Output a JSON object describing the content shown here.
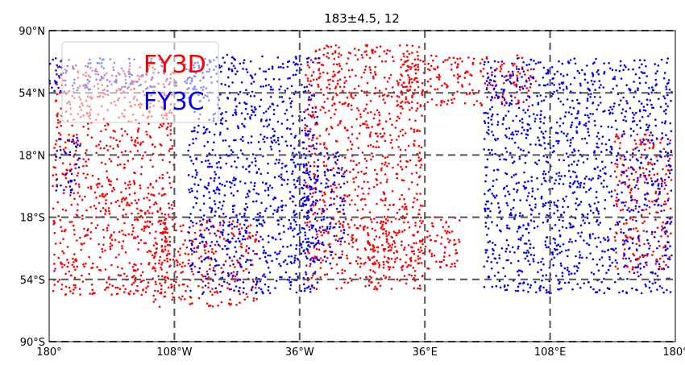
{
  "chart_data": {
    "type": "scatter",
    "title": "183±4.5, 12",
    "xlabel": "",
    "ylabel": "",
    "xlim": [
      -180,
      180
    ],
    "ylim": [
      -90,
      90
    ],
    "grid": true,
    "legend_position": "top-left",
    "x_ticks": [
      {
        "value": -180,
        "label": "180°"
      },
      {
        "value": -108,
        "label": "108°W"
      },
      {
        "value": -36,
        "label": "36°W"
      },
      {
        "value": 36,
        "label": "36°E"
      },
      {
        "value": 108,
        "label": "108°E"
      },
      {
        "value": 180,
        "label": "180°"
      }
    ],
    "y_ticks": [
      {
        "value": 90,
        "label": "90°N"
      },
      {
        "value": 54,
        "label": "54°N"
      },
      {
        "value": 18,
        "label": "18°N"
      },
      {
        "value": -18,
        "label": "18°S"
      },
      {
        "value": -54,
        "label": "54°S"
      },
      {
        "value": -90,
        "label": "90°S"
      }
    ],
    "series": [
      {
        "name": "FY3D",
        "color": "#ff0000",
        "swaths": [
          {
            "x_range": [
              -178,
              -108
            ],
            "y_range": [
              -63,
              70
            ]
          },
          {
            "x_range": [
              -120,
              -60
            ],
            "y_range": [
              -70,
              -20
            ]
          },
          {
            "x_range": [
              -33,
              35
            ],
            "y_range": [
              -60,
              82
            ]
          },
          {
            "x_range": [
              3,
              56
            ],
            "y_range": [
              -48,
              -18
            ]
          },
          {
            "x_range": [
              20,
              100
            ],
            "y_range": [
              46,
              76
            ]
          },
          {
            "x_range": [
              145,
              178
            ],
            "y_range": [
              -50,
              30
            ]
          }
        ]
      },
      {
        "name": "FY3C",
        "color": "#0000ff",
        "swaths": [
          {
            "x_range": [
              -176,
              -162
            ],
            "y_range": [
              -5,
              30
            ]
          },
          {
            "x_range": [
              -180,
              -95
            ],
            "y_range": [
              55,
              74
            ]
          },
          {
            "x_range": [
              -100,
              -25
            ],
            "y_range": [
              -63,
              76
            ]
          },
          {
            "x_range": [
              -40,
              -10
            ],
            "y_range": [
              -45,
              20
            ]
          },
          {
            "x_range": [
              70,
              178
            ],
            "y_range": [
              -62,
              74
            ]
          }
        ]
      }
    ]
  }
}
